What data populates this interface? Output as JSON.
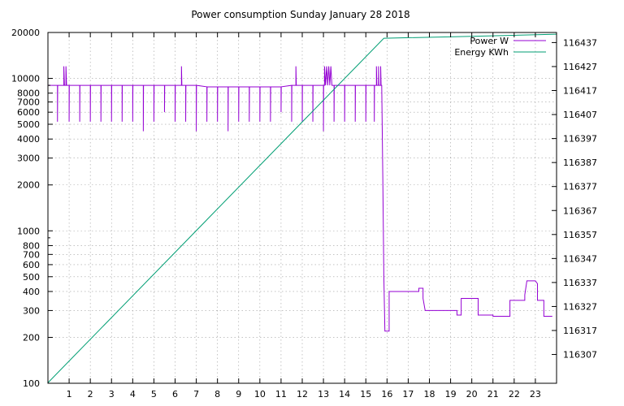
{
  "chart_data": {
    "type": "line",
    "title": "Power consumption Sunday January 28 2018",
    "xlabel": "",
    "ylabel": "",
    "grid": true,
    "legend_placement": "top-right",
    "x_ticks": [
      1,
      2,
      3,
      4,
      5,
      6,
      7,
      8,
      9,
      10,
      11,
      12,
      13,
      14,
      15,
      16,
      17,
      18,
      19,
      20,
      21,
      22,
      23
    ],
    "xlim": [
      0,
      24
    ],
    "y_left": {
      "scale": "log",
      "lim": [
        100,
        20000
      ],
      "ticks": [
        100,
        200,
        300,
        400,
        500,
        600,
        700,
        800,
        1000,
        2000,
        3000,
        4000,
        5000,
        6000,
        7000,
        8000,
        10000,
        20000
      ],
      "tick_labels": [
        "100",
        "200",
        "300",
        "400",
        "500",
        "600",
        "700",
        "800",
        "1000",
        "2000",
        "3000",
        "4000",
        "5000",
        "6000",
        "7000",
        "8000",
        "10000",
        "20000"
      ]
    },
    "y_right": {
      "scale": "linear",
      "lim": [
        116295,
        116441.2
      ],
      "ticks": [
        116307,
        116317,
        116327,
        116337,
        116347,
        116357,
        116367,
        116377,
        116387,
        116397,
        116407,
        116417,
        116427,
        116437
      ],
      "tick_labels": [
        "116307",
        "116317",
        "116327",
        "116337",
        "116347",
        "116357",
        "116367",
        "116377",
        "116387",
        "116397",
        "116407",
        "116417",
        "116427",
        "116437"
      ]
    },
    "series": [
      {
        "name": "Power W",
        "axis": "left",
        "color": "#9400d3",
        "points": [
          [
            0,
            9000
          ],
          [
            0.45,
            9000
          ],
          [
            0.45,
            5200
          ],
          [
            0.46,
            9000
          ],
          [
            0.75,
            9000
          ],
          [
            0.75,
            12000
          ],
          [
            0.78,
            9000
          ],
          [
            0.85,
            9000
          ],
          [
            0.85,
            12000
          ],
          [
            0.88,
            9000
          ],
          [
            1.0,
            9000
          ],
          [
            1.0,
            5200
          ],
          [
            1.01,
            9000
          ],
          [
            1.5,
            9000
          ],
          [
            1.5,
            5200
          ],
          [
            1.51,
            9000
          ],
          [
            2.0,
            9000
          ],
          [
            2.0,
            5200
          ],
          [
            2.01,
            9000
          ],
          [
            2.5,
            9000
          ],
          [
            2.5,
            5200
          ],
          [
            2.51,
            9000
          ],
          [
            3.0,
            9000
          ],
          [
            3.0,
            5200
          ],
          [
            3.01,
            9000
          ],
          [
            3.5,
            9000
          ],
          [
            3.5,
            5200
          ],
          [
            3.51,
            9000
          ],
          [
            4.0,
            9000
          ],
          [
            4.0,
            5200
          ],
          [
            4.01,
            9000
          ],
          [
            4.5,
            9000
          ],
          [
            4.5,
            4500
          ],
          [
            4.51,
            9000
          ],
          [
            5.0,
            9000
          ],
          [
            5.0,
            5200
          ],
          [
            5.01,
            9000
          ],
          [
            5.5,
            9000
          ],
          [
            5.5,
            6000
          ],
          [
            5.51,
            9000
          ],
          [
            6.0,
            9000
          ],
          [
            6.0,
            5200
          ],
          [
            6.01,
            9000
          ],
          [
            6.3,
            9000
          ],
          [
            6.3,
            12000
          ],
          [
            6.32,
            9000
          ],
          [
            6.5,
            9000
          ],
          [
            6.5,
            5200
          ],
          [
            6.51,
            9000
          ],
          [
            7.0,
            9000
          ],
          [
            7.0,
            4500
          ],
          [
            7.01,
            9000
          ],
          [
            7.5,
            8800
          ],
          [
            7.5,
            5200
          ],
          [
            7.51,
            8800
          ],
          [
            8.0,
            8800
          ],
          [
            8.0,
            5200
          ],
          [
            8.01,
            8800
          ],
          [
            8.5,
            8800
          ],
          [
            8.5,
            4500
          ],
          [
            8.51,
            8800
          ],
          [
            9.0,
            8800
          ],
          [
            9.0,
            5200
          ],
          [
            9.01,
            8800
          ],
          [
            9.5,
            8800
          ],
          [
            9.5,
            5200
          ],
          [
            9.51,
            8800
          ],
          [
            10.0,
            8800
          ],
          [
            10.0,
            5200
          ],
          [
            10.01,
            8800
          ],
          [
            10.5,
            8800
          ],
          [
            10.5,
            5200
          ],
          [
            10.51,
            8800
          ],
          [
            11.0,
            8800
          ],
          [
            11.0,
            6000
          ],
          [
            11.01,
            8800
          ],
          [
            11.5,
            9000
          ],
          [
            11.5,
            5200
          ],
          [
            11.51,
            9000
          ],
          [
            11.7,
            9000
          ],
          [
            11.7,
            12000
          ],
          [
            11.72,
            9000
          ],
          [
            12.0,
            9000
          ],
          [
            12.0,
            5200
          ],
          [
            12.01,
            9000
          ],
          [
            12.5,
            9000
          ],
          [
            12.5,
            5200
          ],
          [
            12.51,
            9000
          ],
          [
            13.0,
            9000
          ],
          [
            13.0,
            4500
          ],
          [
            13.01,
            9000
          ],
          [
            13.05,
            9000
          ],
          [
            13.05,
            12000
          ],
          [
            13.1,
            9000
          ],
          [
            13.15,
            12000
          ],
          [
            13.2,
            9000
          ],
          [
            13.25,
            12000
          ],
          [
            13.3,
            9000
          ],
          [
            13.35,
            12000
          ],
          [
            13.4,
            9000
          ],
          [
            13.5,
            9000
          ],
          [
            13.5,
            5200
          ],
          [
            13.51,
            9000
          ],
          [
            14.0,
            9000
          ],
          [
            14.0,
            5200
          ],
          [
            14.01,
            9000
          ],
          [
            14.5,
            9000
          ],
          [
            14.5,
            5200
          ],
          [
            14.51,
            9000
          ],
          [
            15.0,
            9000
          ],
          [
            15.0,
            5200
          ],
          [
            15.01,
            9000
          ],
          [
            15.4,
            9000
          ],
          [
            15.4,
            5200
          ],
          [
            15.41,
            9000
          ],
          [
            15.5,
            9000
          ],
          [
            15.5,
            12000
          ],
          [
            15.52,
            9000
          ],
          [
            15.6,
            9000
          ],
          [
            15.6,
            12000
          ],
          [
            15.62,
            9000
          ],
          [
            15.7,
            9000
          ],
          [
            15.7,
            12000
          ],
          [
            15.72,
            9000
          ],
          [
            15.75,
            9000
          ],
          [
            15.8,
            2300
          ],
          [
            15.85,
            500
          ],
          [
            15.9,
            220
          ],
          [
            16.1,
            220
          ],
          [
            16.1,
            400
          ],
          [
            17.5,
            400
          ],
          [
            17.5,
            420
          ],
          [
            17.7,
            420
          ],
          [
            17.7,
            360
          ],
          [
            17.8,
            300
          ],
          [
            19.3,
            300
          ],
          [
            19.3,
            280
          ],
          [
            19.5,
            280
          ],
          [
            19.5,
            360
          ],
          [
            20.3,
            360
          ],
          [
            20.3,
            280
          ],
          [
            21.0,
            280
          ],
          [
            21.0,
            275
          ],
          [
            21.8,
            275
          ],
          [
            21.8,
            350
          ],
          [
            22.5,
            350
          ],
          [
            22.5,
            380
          ],
          [
            22.6,
            470
          ],
          [
            23.0,
            470
          ],
          [
            23.1,
            450
          ],
          [
            23.1,
            350
          ],
          [
            23.4,
            350
          ],
          [
            23.4,
            275
          ],
          [
            23.8,
            275
          ]
        ]
      },
      {
        "name": "Energy KWh",
        "axis": "right",
        "color": "#009e73",
        "points": [
          [
            0,
            116295.2
          ],
          [
            15.85,
            116438.8
          ],
          [
            20,
            116439.6
          ],
          [
            24,
            116440.5
          ]
        ]
      }
    ]
  }
}
